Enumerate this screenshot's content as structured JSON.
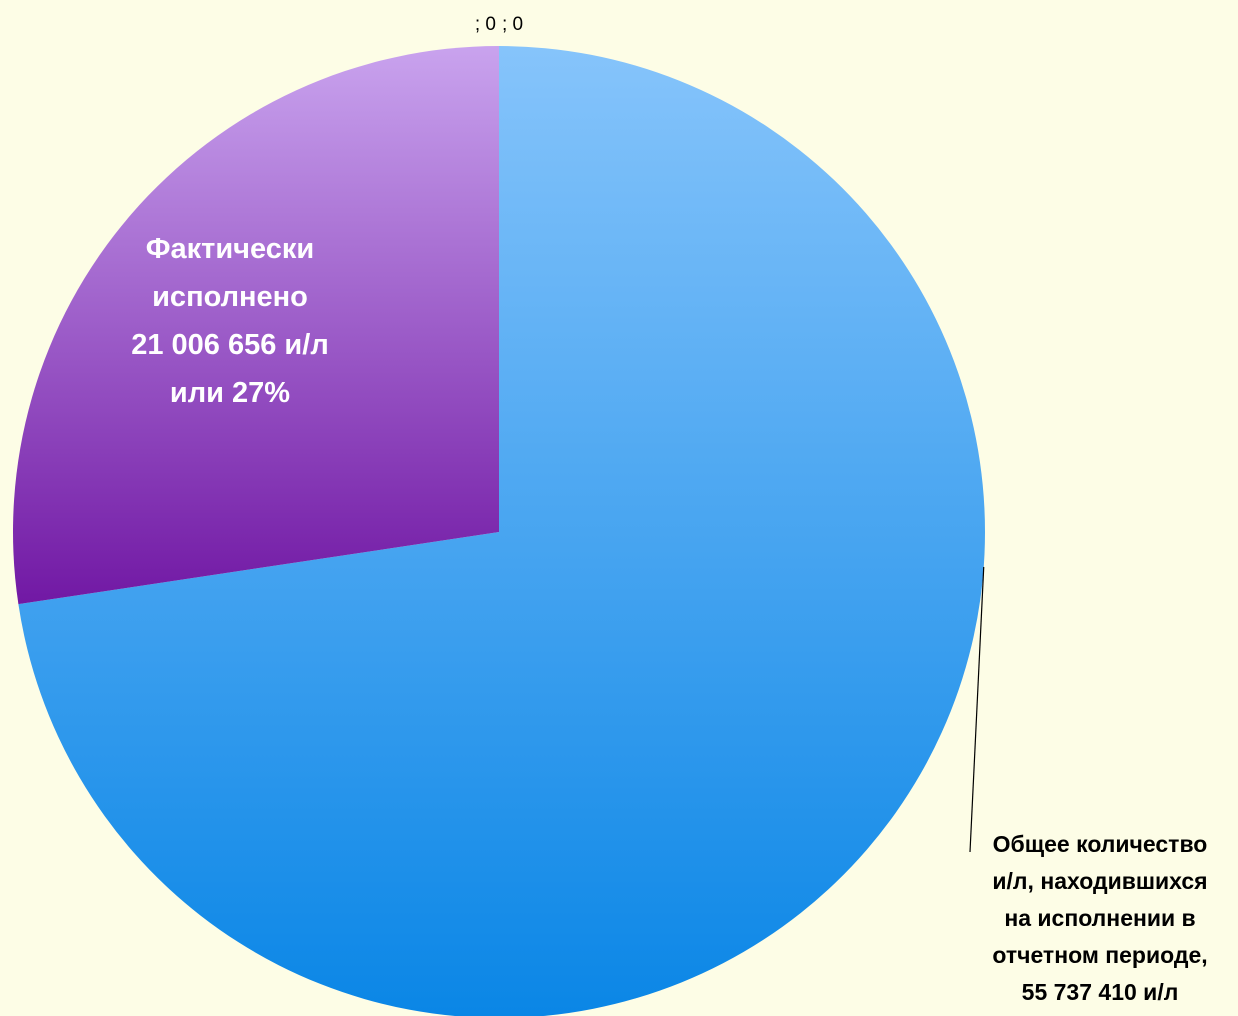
{
  "chart_data": {
    "type": "pie",
    "background_color": "#fdfde6",
    "slices": [
      {
        "key": "total",
        "value": 55737410,
        "label_lines": [
          "Общее количество",
          "и/л, находившихся",
          "на исполнении в",
          "отчетном периоде,",
          "55 737 410 и/л"
        ],
        "label_color": "#000000",
        "gradient": [
          "#86c4fb",
          "#0a86e6"
        ]
      },
      {
        "key": "executed",
        "value": 21006656,
        "label_lines": [
          "Фактически",
          "исполнено",
          "21 006 656 и/л",
          "или 27%"
        ],
        "label_color": "#ffffff",
        "gradient": [
          "#c9a3ee",
          "#7118a4"
        ]
      }
    ],
    "zero_labels": [
      "; 0",
      "; 0"
    ]
  }
}
